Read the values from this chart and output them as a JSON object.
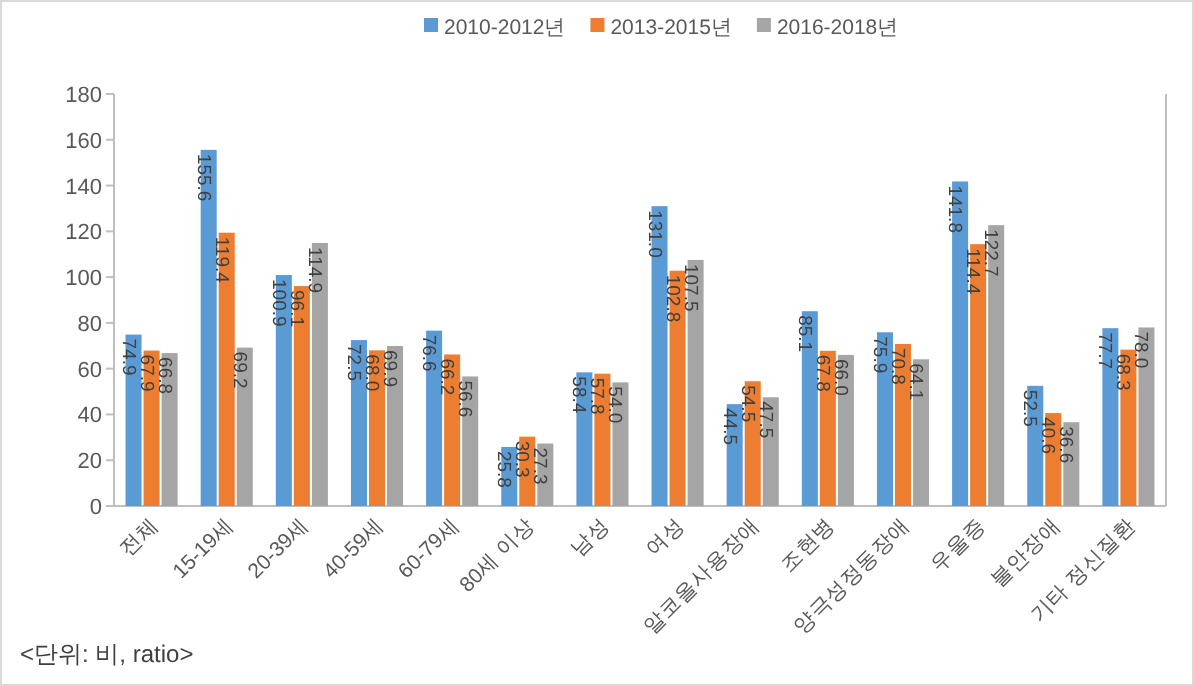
{
  "chart_data": {
    "type": "bar",
    "categories": [
      "전체",
      "15-19세",
      "20-39세",
      "40-59세",
      "60-79세",
      "80세 이상",
      "남성",
      "여성",
      "알코올사용장애",
      "조현병",
      "양극성정동장애",
      "우울증",
      "불안장애",
      "기타 정신질환"
    ],
    "series": [
      {
        "name": "2010-2012년",
        "color": "#5b9bd5",
        "values": [
          74.9,
          155.6,
          100.9,
          72.5,
          76.6,
          25.8,
          58.4,
          131.0,
          44.5,
          85.1,
          75.9,
          141.8,
          52.5,
          77.7
        ],
        "value_labels": [
          "74.9",
          "155.6",
          "100.9",
          "72.5",
          "76.6",
          "25.8",
          "58.4",
          "131.0",
          "44.5",
          "85.1",
          "75.9",
          "141.8",
          "52.5",
          "77.7"
        ]
      },
      {
        "name": "2013-2015년",
        "color": "#ed7d31",
        "values": [
          67.9,
          119.4,
          96.1,
          68.0,
          66.2,
          30.3,
          57.8,
          102.8,
          54.5,
          67.8,
          70.8,
          114.4,
          40.6,
          68.3
        ],
        "value_labels": [
          "67.9",
          "119.4",
          "96.1",
          "68.0",
          "66.2",
          "30.3",
          "57.8",
          "102.8",
          "54.5",
          "67.8",
          "70.8",
          "114.4",
          "40.6",
          "68.3"
        ]
      },
      {
        "name": "2016-2018년",
        "color": "#a5a5a5",
        "values": [
          66.8,
          69.2,
          114.9,
          69.9,
          56.6,
          27.3,
          54.0,
          107.5,
          47.5,
          66.0,
          64.1,
          122.7,
          36.6,
          78.0
        ],
        "value_labels": [
          "66.8",
          "69.2",
          "114.9",
          "69.9",
          "56.6",
          "27.3",
          "54.0",
          "107.5",
          "47.5",
          "66.0",
          "64.1",
          "122.7",
          "36.6",
          "78.0"
        ]
      }
    ],
    "ylim": [
      0,
      180
    ],
    "yticks": [
      0,
      20,
      40,
      60,
      80,
      100,
      120,
      140,
      160,
      180
    ],
    "grid": false,
    "legend": "top",
    "annotations": [
      "<단위: 비, ratio>"
    ]
  }
}
